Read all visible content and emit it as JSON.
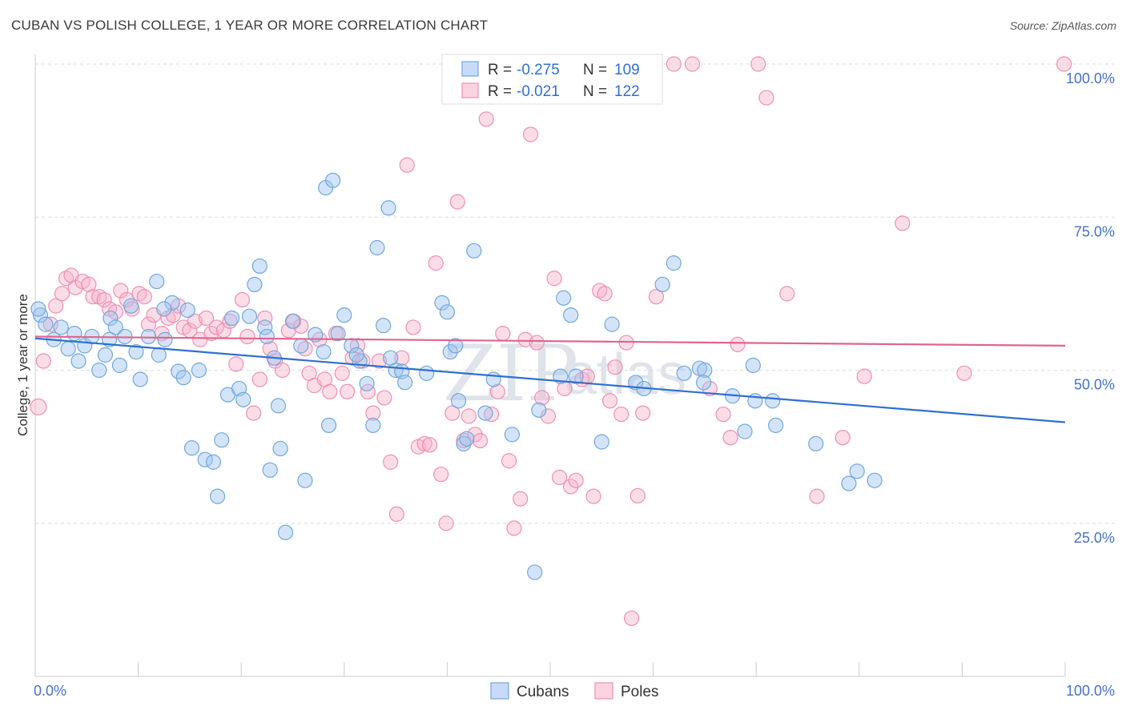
{
  "title": "CUBAN VS POLISH COLLEGE, 1 YEAR OR MORE CORRELATION CHART",
  "source": "Source: ZipAtlas.com",
  "watermark": {
    "zip": "ZIP",
    "atlas": "atlas"
  },
  "legend": {
    "r_label": "R =",
    "n_label": "N =",
    "cubans": {
      "r": "-0.275",
      "n": "109",
      "color": "#6fa8dc"
    },
    "poles": {
      "r": "-0.021",
      "n": "122",
      "color": "#f08fb0"
    }
  },
  "bottom_legend": {
    "cubans": "Cubans",
    "poles": "Poles"
  },
  "chart_data": {
    "type": "scatter",
    "xlabel": "",
    "ylabel": "College, 1 year or more",
    "xlim": [
      0,
      100
    ],
    "ylim": [
      0,
      100
    ],
    "x_tick_labels": [
      "0.0%",
      "100.0%"
    ],
    "y_ticks": [
      25,
      50,
      75,
      100
    ],
    "y_tick_labels": [
      "25.0%",
      "50.0%",
      "75.0%",
      "100.0%"
    ],
    "grid": "horizontal dashed",
    "legend_position": "top-center",
    "series": [
      {
        "name": "Cubans",
        "color": "#6fa8dc",
        "trend": {
          "x": [
            0,
            100
          ],
          "y": [
            55.2,
            41.5
          ]
        },
        "points": [
          [
            0.5,
            59
          ],
          [
            1,
            57.5
          ],
          [
            1.8,
            55
          ],
          [
            2.5,
            57
          ],
          [
            3.2,
            53.5
          ],
          [
            3.8,
            56
          ],
          [
            4.2,
            51.5
          ],
          [
            4.8,
            54
          ],
          [
            5.5,
            55.5
          ],
          [
            6.2,
            50
          ],
          [
            6.8,
            52.5
          ],
          [
            7.3,
            58.5
          ],
          [
            7.8,
            57
          ],
          [
            8.2,
            50.8
          ],
          [
            8.7,
            55.5
          ],
          [
            9.3,
            60.5
          ],
          [
            9.8,
            53
          ],
          [
            10.2,
            48.5
          ],
          [
            11,
            55.5
          ],
          [
            11.8,
            64.5
          ],
          [
            12,
            52.5
          ],
          [
            12.6,
            55
          ],
          [
            13.3,
            61
          ],
          [
            13.9,
            49.8
          ],
          [
            14.4,
            48.8
          ],
          [
            14.8,
            59.8
          ],
          [
            15.2,
            37.3
          ],
          [
            15.9,
            50
          ],
          [
            16.5,
            35.4
          ],
          [
            17.3,
            35
          ],
          [
            17.7,
            29.4
          ],
          [
            18.1,
            38.6
          ],
          [
            19.1,
            58.5
          ],
          [
            18.7,
            46
          ],
          [
            19.8,
            47
          ],
          [
            20.8,
            58.8
          ],
          [
            20.2,
            45.2
          ],
          [
            21.3,
            64
          ],
          [
            21.8,
            67
          ],
          [
            22.3,
            57
          ],
          [
            22.8,
            33.7
          ],
          [
            23.2,
            52
          ],
          [
            23.6,
            44.2
          ],
          [
            23.8,
            37.2
          ],
          [
            24.3,
            23.5
          ],
          [
            25,
            58
          ],
          [
            25.8,
            54
          ],
          [
            26.2,
            32
          ],
          [
            27.2,
            55.8
          ],
          [
            28.2,
            79.8
          ],
          [
            28,
            53
          ],
          [
            28.5,
            41
          ],
          [
            28.9,
            81
          ],
          [
            29.4,
            56
          ],
          [
            30,
            59
          ],
          [
            30.7,
            54
          ],
          [
            31.5,
            51.5
          ],
          [
            31.2,
            52.5
          ],
          [
            32.2,
            47.8
          ],
          [
            32.8,
            41
          ],
          [
            33.2,
            70
          ],
          [
            33.8,
            57.3
          ],
          [
            34.3,
            76.5
          ],
          [
            35,
            50
          ],
          [
            35.6,
            49.8
          ],
          [
            35.9,
            48
          ],
          [
            38,
            49.5
          ],
          [
            39.5,
            61
          ],
          [
            40,
            59.5
          ],
          [
            40.3,
            53
          ],
          [
            40.8,
            54
          ],
          [
            41.1,
            45
          ],
          [
            41.6,
            38
          ],
          [
            41.9,
            38.8
          ],
          [
            42.6,
            69.5
          ],
          [
            48.5,
            17
          ],
          [
            43.7,
            43
          ],
          [
            48.9,
            43.5
          ],
          [
            46.3,
            39.5
          ],
          [
            51.3,
            61.8
          ],
          [
            51,
            49
          ],
          [
            52,
            59
          ],
          [
            52.5,
            49
          ],
          [
            55,
            38.3
          ],
          [
            56,
            57.5
          ],
          [
            58.3,
            48
          ],
          [
            59.1,
            47
          ],
          [
            60.9,
            64
          ],
          [
            62,
            67.5
          ],
          [
            63,
            49.5
          ],
          [
            64.5,
            50.3
          ],
          [
            65,
            50
          ],
          [
            64.9,
            48
          ],
          [
            67.7,
            45.8
          ],
          [
            68.9,
            40
          ],
          [
            69.7,
            50.8
          ],
          [
            69.9,
            45
          ],
          [
            71.6,
            45
          ],
          [
            71.9,
            41
          ],
          [
            75.8,
            38
          ],
          [
            79,
            31.5
          ],
          [
            79.8,
            33.5
          ],
          [
            81.5,
            32
          ],
          [
            0.3,
            60
          ],
          [
            7.2,
            55
          ],
          [
            22.5,
            55.5
          ],
          [
            12.5,
            60
          ],
          [
            34.5,
            52
          ],
          [
            44.5,
            48.5
          ]
        ]
      },
      {
        "name": "Poles",
        "color": "#f08fb0",
        "trend": {
          "x": [
            0,
            100
          ],
          "y": [
            55.5,
            54
          ]
        },
        "points": [
          [
            0.3,
            44
          ],
          [
            0.8,
            51.5
          ],
          [
            1.5,
            57.5
          ],
          [
            2,
            60.5
          ],
          [
            2.6,
            62.5
          ],
          [
            3,
            65
          ],
          [
            3.5,
            65.5
          ],
          [
            3.9,
            63.5
          ],
          [
            4.6,
            64.5
          ],
          [
            5.2,
            64
          ],
          [
            5.6,
            62
          ],
          [
            6.2,
            62
          ],
          [
            6.7,
            61.5
          ],
          [
            7.2,
            60
          ],
          [
            7.8,
            59.5
          ],
          [
            8.3,
            63
          ],
          [
            8.9,
            61.5
          ],
          [
            9.4,
            60
          ],
          [
            10.1,
            62.5
          ],
          [
            10.6,
            62
          ],
          [
            11,
            57.5
          ],
          [
            11.5,
            59
          ],
          [
            12.3,
            56
          ],
          [
            12.9,
            58.5
          ],
          [
            13.4,
            59
          ],
          [
            13.9,
            60.5
          ],
          [
            14.4,
            57
          ],
          [
            15,
            56.5
          ],
          [
            15.5,
            58
          ],
          [
            16,
            55
          ],
          [
            16.6,
            58.5
          ],
          [
            17.1,
            56
          ],
          [
            17.6,
            57
          ],
          [
            18.3,
            56.5
          ],
          [
            18.9,
            58
          ],
          [
            19.5,
            51
          ],
          [
            20.1,
            61.5
          ],
          [
            20.6,
            55.5
          ],
          [
            21.2,
            43
          ],
          [
            21.8,
            48.5
          ],
          [
            22.3,
            58.5
          ],
          [
            22.8,
            53.5
          ],
          [
            23.3,
            51.5
          ],
          [
            24,
            50
          ],
          [
            24.6,
            56.5
          ],
          [
            25.1,
            58
          ],
          [
            25.8,
            57.2
          ],
          [
            26.2,
            53.5
          ],
          [
            26.6,
            49.5
          ],
          [
            27.1,
            47.5
          ],
          [
            27.6,
            55
          ],
          [
            28.1,
            48.5
          ],
          [
            28.6,
            46.5
          ],
          [
            29.2,
            56
          ],
          [
            29.8,
            49.5
          ],
          [
            30.3,
            46.5
          ],
          [
            30.8,
            52
          ],
          [
            31.3,
            54
          ],
          [
            31.8,
            51.5
          ],
          [
            32.3,
            46.5
          ],
          [
            32.8,
            43
          ],
          [
            33.4,
            51.5
          ],
          [
            33.9,
            45.5
          ],
          [
            34.5,
            35
          ],
          [
            35.1,
            26.5
          ],
          [
            35.6,
            52
          ],
          [
            36.1,
            83.5
          ],
          [
            36.7,
            57
          ],
          [
            37.2,
            37.5
          ],
          [
            37.8,
            38
          ],
          [
            38.3,
            37.8
          ],
          [
            38.9,
            67.5
          ],
          [
            39.4,
            33
          ],
          [
            39.9,
            25
          ],
          [
            40.5,
            43
          ],
          [
            41,
            77.5
          ],
          [
            41.6,
            38.5
          ],
          [
            42.1,
            42.5
          ],
          [
            42.7,
            39.5
          ],
          [
            43.2,
            38.5
          ],
          [
            43.8,
            91
          ],
          [
            44.3,
            42.8
          ],
          [
            44.9,
            46.5
          ],
          [
            45.4,
            56
          ],
          [
            46,
            35.2
          ],
          [
            46.5,
            24.2
          ],
          [
            47.1,
            29
          ],
          [
            47.6,
            55
          ],
          [
            48.1,
            88.5
          ],
          [
            48.7,
            54.5
          ],
          [
            49.2,
            45.5
          ],
          [
            49.8,
            42.5
          ],
          [
            50.4,
            65
          ],
          [
            50.9,
            32.5
          ],
          [
            51.4,
            47
          ],
          [
            52,
            31
          ],
          [
            52.5,
            32
          ],
          [
            53.1,
            48.5
          ],
          [
            53.6,
            49
          ],
          [
            54.2,
            29.4
          ],
          [
            54.8,
            63
          ],
          [
            55.3,
            62.5
          ],
          [
            55.8,
            45
          ],
          [
            56.3,
            50.5
          ],
          [
            56.9,
            42.8
          ],
          [
            57.4,
            54.5
          ],
          [
            57.9,
            9.5
          ],
          [
            58.5,
            29.5
          ],
          [
            59,
            43
          ],
          [
            60.3,
            62
          ],
          [
            62,
            100
          ],
          [
            63.8,
            100
          ],
          [
            65.5,
            47
          ],
          [
            66.8,
            42.8
          ],
          [
            67.5,
            39
          ],
          [
            68.2,
            54.2
          ],
          [
            70.2,
            100
          ],
          [
            71,
            94.5
          ],
          [
            73,
            62.5
          ],
          [
            75.9,
            29.4
          ],
          [
            80.5,
            49
          ],
          [
            84.2,
            74
          ],
          [
            90.2,
            49.5
          ],
          [
            99.9,
            100
          ],
          [
            52.8,
            97
          ],
          [
            78.4,
            39
          ]
        ]
      }
    ]
  }
}
